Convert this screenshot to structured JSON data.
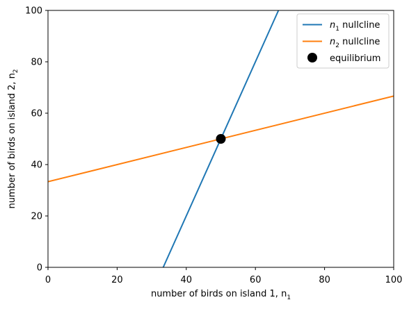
{
  "chart_data": {
    "type": "line",
    "xlabel": "number of birds on island 1, n",
    "xlabel_sub": "1",
    "ylabel": "number of birds on island 2, n",
    "ylabel_sub": "2",
    "xlim": [
      0,
      100
    ],
    "ylim": [
      0,
      100
    ],
    "xticks": [
      0,
      20,
      40,
      60,
      80,
      100
    ],
    "yticks": [
      0,
      20,
      40,
      60,
      80,
      100
    ],
    "grid": false,
    "legend_position": "top-right",
    "series": [
      {
        "name": "n",
        "name_sub": "1",
        "name_suffix": " nullcline",
        "color": "#1f77b4",
        "x": [
          33.33,
          66.67
        ],
        "y": [
          0,
          100
        ]
      },
      {
        "name": "n",
        "name_sub": "2",
        "name_suffix": " nullcline",
        "color": "#ff7f0e",
        "x": [
          0,
          100
        ],
        "y": [
          33.33,
          66.67
        ]
      }
    ],
    "points": [
      {
        "name": "equilibrium",
        "color": "#000000",
        "x": 50,
        "y": 50
      }
    ]
  }
}
